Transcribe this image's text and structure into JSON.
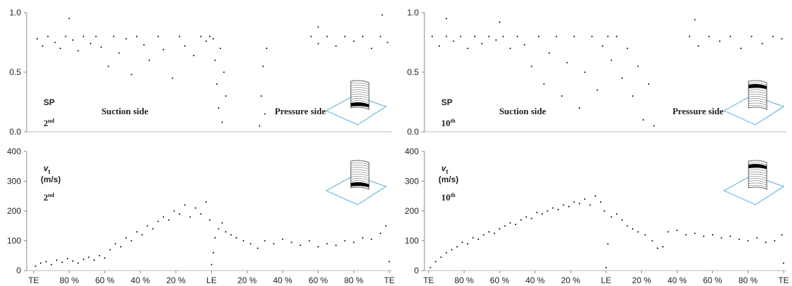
{
  "chart_data": [
    {
      "type": "scatter",
      "label": "SP",
      "layer": {
        "number": "2",
        "suffix": "nd"
      },
      "annotations": [
        "Suction side",
        "Pressure side"
      ],
      "color": "#000000",
      "xlim": [
        -100,
        100
      ],
      "ylim": [
        0,
        1
      ],
      "yticks": [
        {
          "value": 0,
          "label": "0.0"
        },
        {
          "value": 0.5,
          "label": "0.5"
        },
        {
          "value": 1,
          "label": "1.0"
        }
      ],
      "x": [
        -98,
        -95,
        -92,
        -88,
        -85,
        -82,
        -78,
        -75,
        -72,
        -68,
        -65,
        -62,
        -58,
        -55,
        -52,
        -48,
        -45,
        -42,
        -38,
        -35,
        -30,
        -27,
        -22,
        -18,
        -15,
        -10,
        -6,
        -3,
        -1,
        1,
        2,
        3,
        4,
        5,
        6,
        7,
        8,
        27,
        28,
        29,
        30,
        31,
        56,
        60,
        65,
        70,
        75,
        80,
        85,
        90,
        95,
        99,
        -80,
        60,
        96
      ],
      "values": [
        0.78,
        0.72,
        0.8,
        0.75,
        0.7,
        0.8,
        0.77,
        0.68,
        0.8,
        0.74,
        0.8,
        0.71,
        0.55,
        0.8,
        0.66,
        0.78,
        0.48,
        0.8,
        0.73,
        0.6,
        0.8,
        0.69,
        0.45,
        0.8,
        0.72,
        0.64,
        0.8,
        0.76,
        0.8,
        0.78,
        0.6,
        0.4,
        0.2,
        0.7,
        0.08,
        0.5,
        0.3,
        0.05,
        0.3,
        0.55,
        0.15,
        0.7,
        0.8,
        0.74,
        0.8,
        0.72,
        0.8,
        0.76,
        0.8,
        0.7,
        0.8,
        0.75,
        0.95,
        0.88,
        0.98
      ]
    },
    {
      "type": "scatter",
      "label": "SP",
      "layer": {
        "number": "10",
        "suffix": "th"
      },
      "annotations": [
        "Suction side",
        "Pressure side"
      ],
      "color": "#000000",
      "xlim": [
        -100,
        100
      ],
      "ylim": [
        0,
        1
      ],
      "yticks": [
        {
          "value": 0,
          "label": "0.0"
        },
        {
          "value": 0.5,
          "label": "0.5"
        },
        {
          "value": 1,
          "label": "1.0"
        }
      ],
      "x": [
        -98,
        -94,
        -90,
        -86,
        -82,
        -78,
        -74,
        -70,
        -66,
        -62,
        -58,
        -54,
        -50,
        -46,
        -42,
        -38,
        -35,
        -32,
        -28,
        -25,
        -22,
        -18,
        -15,
        -12,
        -8,
        -5,
        -2,
        1,
        3,
        6,
        9,
        12,
        15,
        18,
        21,
        24,
        27,
        47,
        52,
        58,
        64,
        70,
        76,
        82,
        88,
        94,
        99,
        -90,
        -60,
        50
      ],
      "values": [
        0.8,
        0.72,
        0.8,
        0.76,
        0.8,
        0.7,
        0.8,
        0.74,
        0.8,
        0.77,
        0.8,
        0.7,
        0.8,
        0.73,
        0.55,
        0.8,
        0.4,
        0.66,
        0.8,
        0.3,
        0.58,
        0.8,
        0.2,
        0.5,
        0.8,
        0.35,
        0.72,
        0.8,
        0.6,
        0.8,
        0.45,
        0.7,
        0.3,
        0.55,
        0.1,
        0.4,
        0.05,
        0.8,
        0.72,
        0.8,
        0.76,
        0.8,
        0.7,
        0.8,
        0.74,
        0.8,
        0.78,
        0.95,
        0.92,
        0.94
      ]
    },
    {
      "type": "scatter",
      "label": {
        "symbol": "v",
        "subscript": "t",
        "unit": "(m/s)"
      },
      "layer": {
        "number": "2",
        "suffix": "nd"
      },
      "color": "#000000",
      "xlim": [
        -100,
        100
      ],
      "ylim": [
        0,
        400
      ],
      "yticks": [
        0,
        100,
        200,
        300,
        400
      ],
      "xticks": [
        {
          "value": -100,
          "label": "TE"
        },
        {
          "value": -80,
          "label": "80 %"
        },
        {
          "value": -60,
          "label": "60 %"
        },
        {
          "value": -40,
          "label": "40 %"
        },
        {
          "value": -20,
          "label": "20 %"
        },
        {
          "value": 0,
          "label": "LE"
        },
        {
          "value": 20,
          "label": "20 %"
        },
        {
          "value": 40,
          "label": "40 %"
        },
        {
          "value": 60,
          "label": "60 %"
        },
        {
          "value": 80,
          "label": "80 %"
        },
        {
          "value": 100,
          "label": "TE"
        }
      ],
      "x": [
        -99,
        -96,
        -93,
        -90,
        -87,
        -84,
        -81,
        -78,
        -75,
        -72,
        -69,
        -66,
        -63,
        -60,
        -57,
        -54,
        -51,
        -48,
        -45,
        -42,
        -39,
        -36,
        -33,
        -30,
        -27,
        -24,
        -21,
        -18,
        -15,
        -12,
        -9,
        -6,
        -3,
        -1,
        0,
        1,
        2,
        4,
        6,
        8,
        11,
        14,
        18,
        22,
        26,
        30,
        35,
        40,
        45,
        50,
        55,
        60,
        65,
        70,
        75,
        80,
        85,
        90,
        95,
        98,
        100
      ],
      "values": [
        15,
        25,
        30,
        20,
        35,
        28,
        40,
        32,
        25,
        38,
        45,
        35,
        50,
        42,
        70,
        90,
        80,
        110,
        100,
        130,
        120,
        150,
        140,
        165,
        180,
        170,
        200,
        190,
        220,
        180,
        210,
        190,
        230,
        170,
        20,
        60,
        110,
        140,
        160,
        130,
        120,
        110,
        100,
        90,
        75,
        100,
        90,
        105,
        95,
        85,
        100,
        80,
        90,
        85,
        100,
        95,
        110,
        105,
        125,
        150,
        30
      ]
    },
    {
      "type": "scatter",
      "label": {
        "symbol": "v",
        "subscript": "t",
        "unit": "(m/s)"
      },
      "layer": {
        "number": "10",
        "suffix": "th"
      },
      "color": "#000000",
      "xlim": [
        -100,
        100
      ],
      "ylim": [
        0,
        400
      ],
      "yticks": [
        0,
        100,
        200,
        300,
        400
      ],
      "xticks": [
        {
          "value": -100,
          "label": "TE"
        },
        {
          "value": -80,
          "label": "80 %"
        },
        {
          "value": -60,
          "label": "60 %"
        },
        {
          "value": -40,
          "label": "40 %"
        },
        {
          "value": -20,
          "label": "20 %"
        },
        {
          "value": 0,
          "label": "LE"
        },
        {
          "value": 20,
          "label": "20 %"
        },
        {
          "value": 40,
          "label": "40 %"
        },
        {
          "value": 60,
          "label": "60 %"
        },
        {
          "value": 80,
          "label": "80 %"
        },
        {
          "value": 100,
          "label": "TE"
        }
      ],
      "x": [
        -99,
        -96,
        -93,
        -90,
        -87,
        -84,
        -81,
        -78,
        -75,
        -72,
        -69,
        -66,
        -63,
        -60,
        -57,
        -54,
        -51,
        -48,
        -45,
        -42,
        -39,
        -36,
        -33,
        -30,
        -27,
        -24,
        -21,
        -18,
        -15,
        -12,
        -9,
        -6,
        -3,
        -1,
        0,
        1,
        3,
        6,
        9,
        12,
        15,
        18,
        22,
        26,
        29,
        32,
        35,
        40,
        45,
        50,
        55,
        60,
        65,
        70,
        75,
        80,
        85,
        90,
        95,
        99,
        100
      ],
      "values": [
        10,
        30,
        45,
        60,
        70,
        80,
        95,
        90,
        110,
        105,
        120,
        130,
        125,
        140,
        150,
        160,
        155,
        170,
        180,
        175,
        195,
        190,
        200,
        210,
        205,
        220,
        215,
        230,
        225,
        240,
        220,
        250,
        230,
        200,
        10,
        90,
        180,
        190,
        170,
        150,
        140,
        130,
        120,
        100,
        75,
        80,
        130,
        135,
        120,
        125,
        115,
        120,
        110,
        115,
        105,
        100,
        110,
        95,
        100,
        120,
        25
      ]
    }
  ]
}
